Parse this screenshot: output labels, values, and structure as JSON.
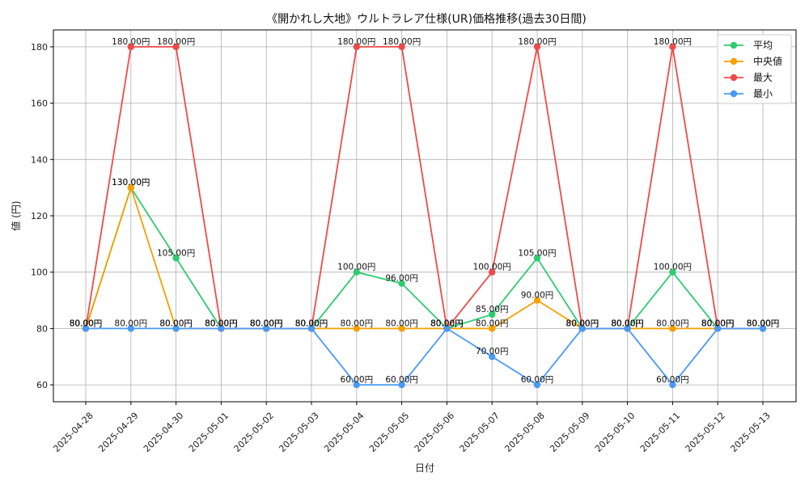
{
  "chart_data": {
    "type": "line",
    "title": "《開かれし大地》ウルトラレア仕様(UR)価格推移(過去30日間)",
    "xlabel": "日付",
    "ylabel": "値 (円)",
    "ylim": [
      54,
      186
    ],
    "yticks": [
      60,
      80,
      100,
      120,
      140,
      160,
      180
    ],
    "grid": true,
    "legend_position": "top-right",
    "value_suffix": "円",
    "categories": [
      "2025-04-28",
      "2025-04-29",
      "2025-04-30",
      "2025-05-01",
      "2025-05-02",
      "2025-05-03",
      "2025-05-04",
      "2025-05-05",
      "2025-05-06",
      "2025-05-07",
      "2025-05-08",
      "2025-05-09",
      "2025-05-10",
      "2025-05-11",
      "2025-05-12",
      "2025-05-13"
    ],
    "series": [
      {
        "name": "平均",
        "color": "#2ecc71",
        "values": [
          80,
          130,
          105,
          80,
          80,
          80,
          100,
          96,
          80,
          85,
          105,
          80,
          80,
          100,
          80,
          80
        ]
      },
      {
        "name": "中央値",
        "color": "#f5a000",
        "values": [
          80,
          130,
          80,
          80,
          80,
          80,
          80,
          80,
          80,
          80,
          90,
          80,
          80,
          80,
          80,
          80
        ]
      },
      {
        "name": "最大",
        "color": "#ef4a4a",
        "values": [
          80,
          180,
          180,
          80,
          80,
          80,
          180,
          180,
          80,
          100,
          180,
          80,
          80,
          180,
          80,
          80
        ]
      },
      {
        "name": "最小",
        "color": "#4a9af5",
        "values": [
          80,
          80,
          80,
          80,
          80,
          80,
          60,
          60,
          80,
          70,
          60,
          80,
          80,
          60,
          80,
          80
        ]
      }
    ]
  }
}
